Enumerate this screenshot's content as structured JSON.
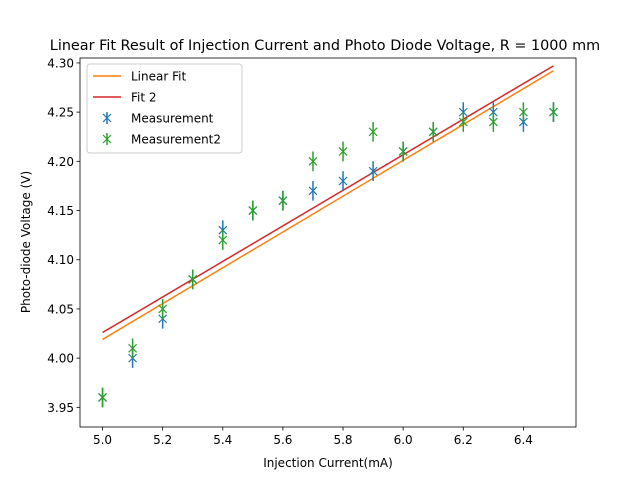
{
  "chart_data": {
    "type": "scatter",
    "title": "Linear Fit Result of Injection Current and Photo Diode Voltage, R = 1000 mm",
    "xlabel": "Injection Current(mA)",
    "ylabel": "Photo-diode Voltage (V)",
    "xlim": [
      4.925,
      6.575
    ],
    "ylim": [
      3.93,
      4.305
    ],
    "xticks": [
      5.0,
      5.2,
      5.4,
      5.6,
      5.8,
      6.0,
      6.2,
      6.4
    ],
    "xtick_labels": [
      "5.0",
      "5.2",
      "5.4",
      "5.6",
      "5.8",
      "6.0",
      "6.2",
      "6.4"
    ],
    "yticks": [
      3.95,
      4.0,
      4.05,
      4.1,
      4.15,
      4.2,
      4.25,
      4.3
    ],
    "ytick_labels": [
      "3.95",
      "4.00",
      "4.05",
      "4.10",
      "4.15",
      "4.20",
      "4.25",
      "4.30"
    ],
    "grid": false,
    "legend_position": "top-left",
    "lines": [
      {
        "name": "Linear Fit",
        "color": "#ff7f0e",
        "x": [
          5.0,
          6.5
        ],
        "y": [
          4.019,
          4.292
        ]
      },
      {
        "name": "Fit 2",
        "color": "#d62728",
        "x": [
          5.0,
          6.5
        ],
        "y": [
          4.026,
          4.297
        ]
      }
    ],
    "series": [
      {
        "name": "Measurement",
        "color": "#1f77b4",
        "marker": "x",
        "error": 0.01,
        "x": [
          5.0,
          5.1,
          5.2,
          5.3,
          5.4,
          5.5,
          5.6,
          5.7,
          5.8,
          5.9,
          6.0,
          6.1,
          6.2,
          6.3,
          6.4,
          6.5
        ],
        "y": [
          3.96,
          4.0,
          4.04,
          4.08,
          4.13,
          4.15,
          4.16,
          4.17,
          4.18,
          4.19,
          4.21,
          4.23,
          4.25,
          4.25,
          4.24,
          4.25
        ]
      },
      {
        "name": "Measurement2",
        "color": "#2ca02c",
        "marker": "x",
        "error": 0.01,
        "x": [
          5.0,
          5.1,
          5.2,
          5.3,
          5.4,
          5.5,
          5.6,
          5.7,
          5.8,
          5.9,
          6.0,
          6.1,
          6.2,
          6.3,
          6.4,
          6.5
        ],
        "y": [
          3.96,
          4.01,
          4.05,
          4.08,
          4.12,
          4.15,
          4.16,
          4.2,
          4.21,
          4.23,
          4.21,
          4.23,
          4.24,
          4.24,
          4.25,
          4.25
        ]
      }
    ]
  }
}
